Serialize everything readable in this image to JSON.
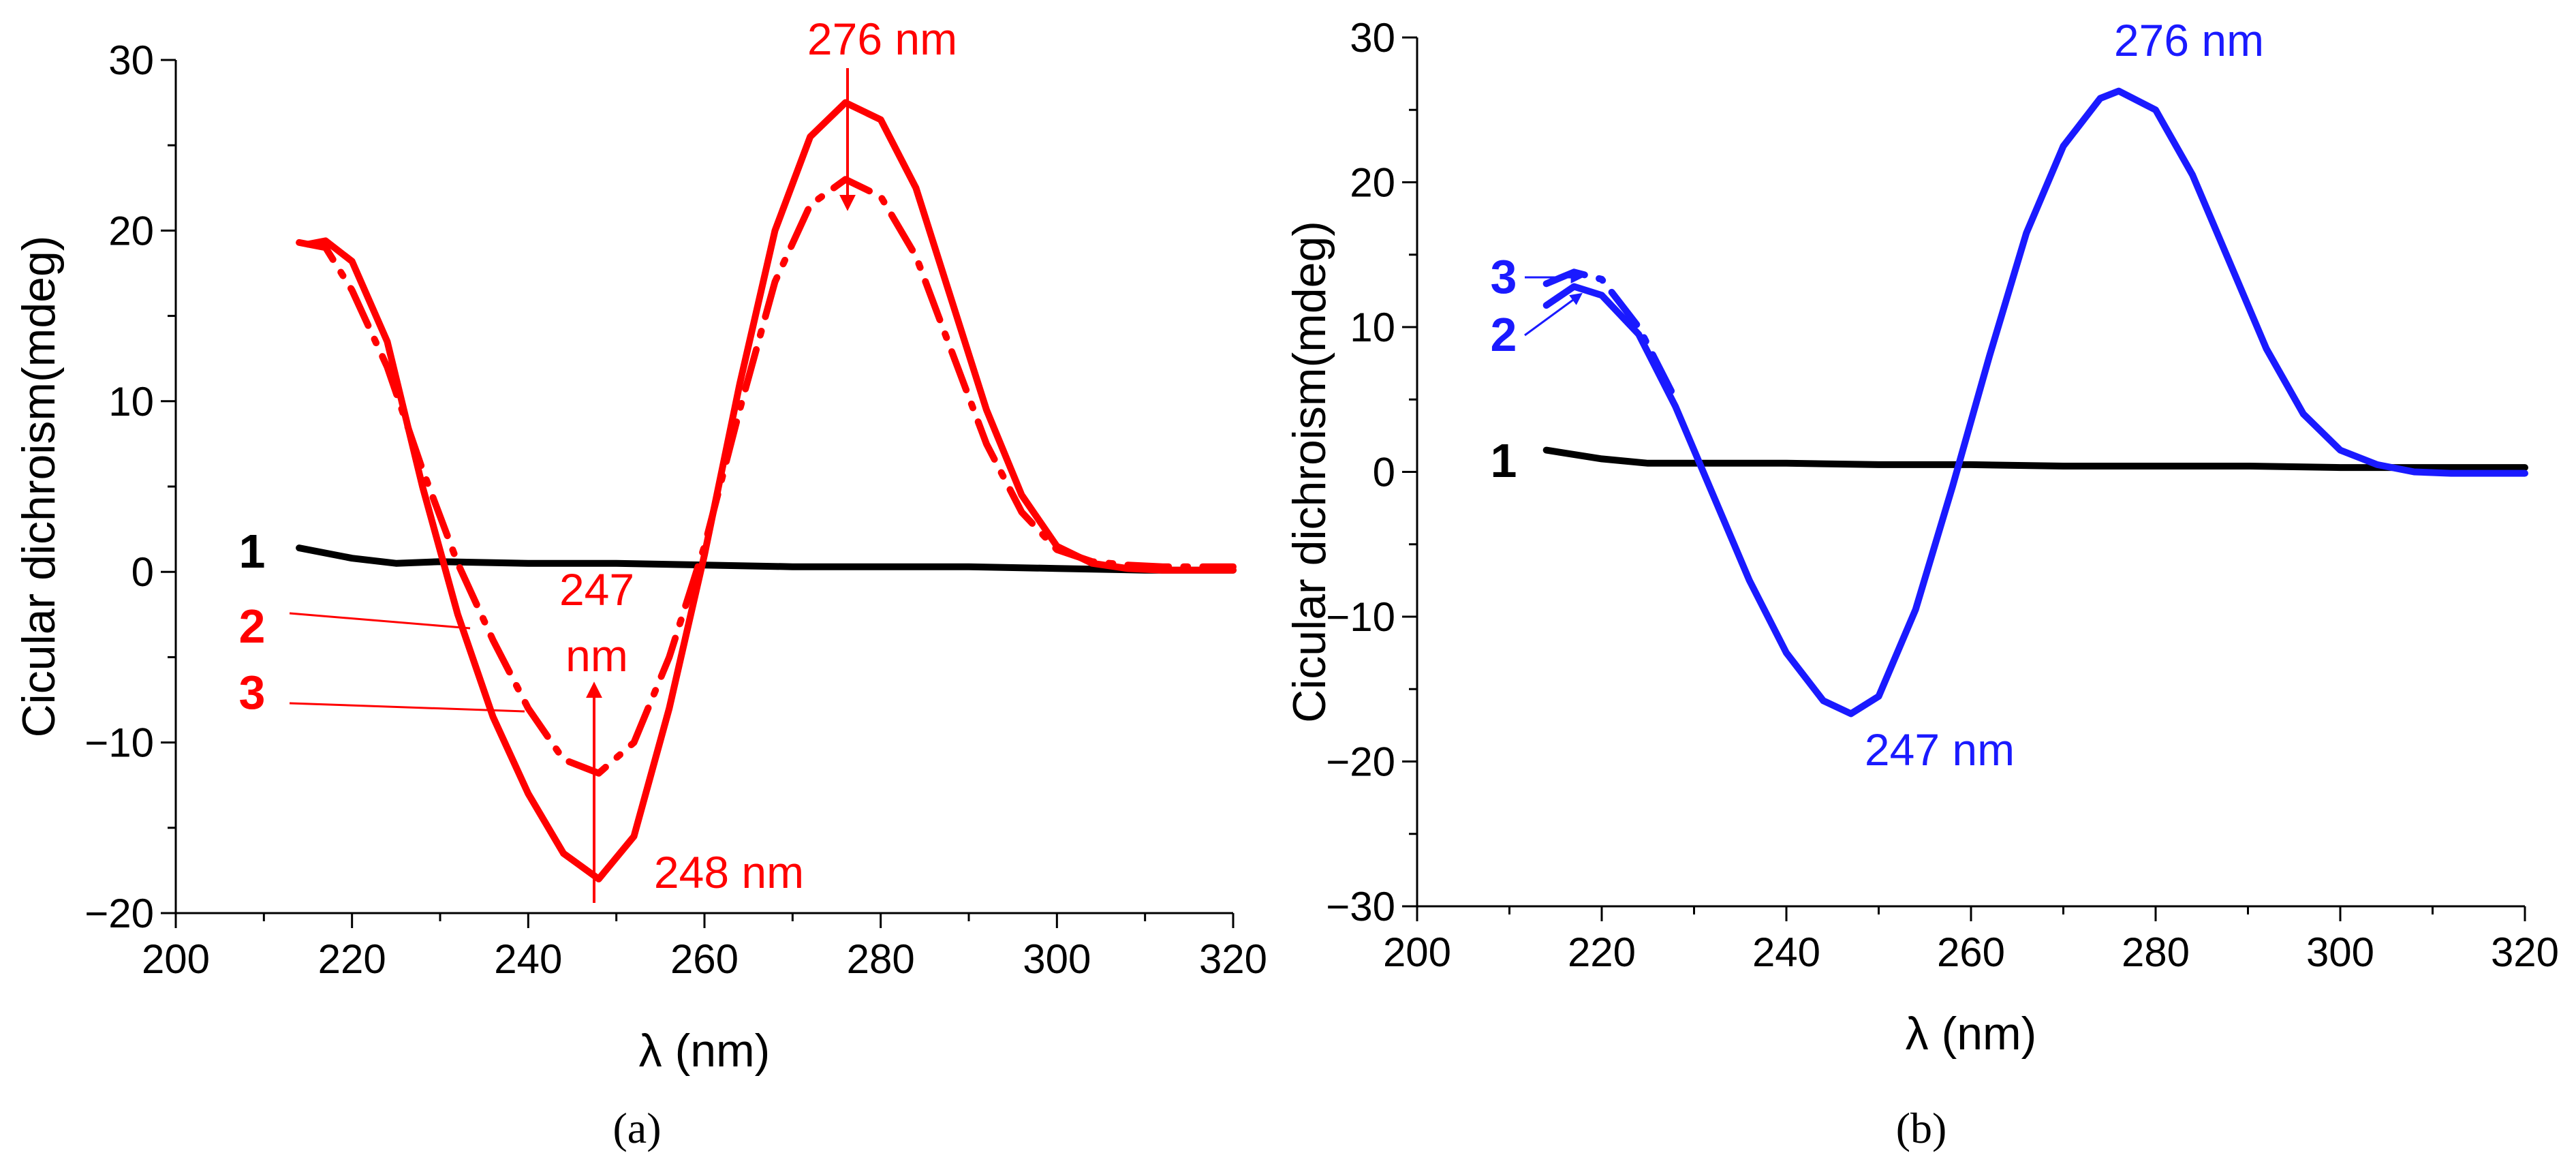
{
  "colors": {
    "axis": "#000000",
    "curve1": "#000000",
    "red": "#ff0000",
    "blue": "#1a1aff"
  },
  "chart_data": [
    {
      "type": "line",
      "panel_label": "(a)",
      "xlabel": "λ (nm)",
      "ylabel": "Cicular dichroism(mdeg)",
      "xlim": [
        200,
        320
      ],
      "ylim": [
        -20,
        30
      ],
      "x_ticks": [
        "200",
        "220",
        "240",
        "260",
        "280",
        "300",
        "320"
      ],
      "y_ticks": [
        "−20",
        "−10",
        "0",
        "10",
        "20",
        "30"
      ],
      "grid": false,
      "series": [
        {
          "name": "1",
          "style": "solid",
          "color": "#000000",
          "x": [
            214,
            220,
            225,
            230,
            240,
            250,
            260,
            270,
            280,
            290,
            300,
            310,
            320
          ],
          "y": [
            1.4,
            0.8,
            0.5,
            0.6,
            0.5,
            0.5,
            0.4,
            0.3,
            0.3,
            0.3,
            0.2,
            0.1,
            0.1
          ]
        },
        {
          "name": "2",
          "style": "solid",
          "color": "#ff0000",
          "x": [
            215,
            217,
            220,
            224,
            228,
            232,
            236,
            240,
            244,
            248,
            252,
            256,
            260,
            264,
            268,
            272,
            276,
            280,
            284,
            288,
            292,
            296,
            300,
            304,
            308,
            312,
            316,
            320
          ],
          "y": [
            19.2,
            19.4,
            18.2,
            13.5,
            5.0,
            -2.5,
            -8.5,
            -13.0,
            -16.5,
            -18.0,
            -15.5,
            -8.0,
            1.0,
            11.0,
            20.0,
            25.5,
            27.5,
            26.5,
            22.5,
            16.0,
            9.5,
            4.5,
            1.5,
            0.5,
            0.2,
            0.1,
            0.1,
            0.1
          ]
        },
        {
          "name": "3",
          "style": "dash-dot",
          "color": "#ff0000",
          "x": [
            214,
            217,
            220,
            224,
            228,
            232,
            236,
            240,
            244,
            248,
            252,
            256,
            260,
            264,
            268,
            272,
            276,
            280,
            284,
            288,
            292,
            296,
            300,
            304,
            308,
            312,
            316,
            320
          ],
          "y": [
            19.3,
            19.0,
            16.5,
            12.0,
            6.0,
            0.5,
            -4.0,
            -8.0,
            -11.0,
            -11.8,
            -10.0,
            -5.0,
            1.5,
            9.5,
            17.0,
            21.5,
            23.0,
            22.0,
            18.5,
            13.0,
            7.5,
            3.5,
            1.3,
            0.6,
            0.4,
            0.3,
            0.3,
            0.3
          ]
        }
      ],
      "curve_labels": [
        "1",
        "2",
        "3"
      ],
      "annotations": [
        "276 nm",
        "247",
        "nm",
        "248 nm"
      ]
    },
    {
      "type": "line",
      "panel_label": "(b)",
      "xlabel": "λ (nm)",
      "ylabel": "Cicular dichroism(mdeg)",
      "xlim": [
        200,
        320
      ],
      "ylim": [
        -30,
        30
      ],
      "x_ticks": [
        "200",
        "220",
        "240",
        "260",
        "280",
        "300",
        "320"
      ],
      "y_ticks": [
        "−30",
        "−20",
        "−10",
        "0",
        "10",
        "20",
        "30"
      ],
      "grid": false,
      "series": [
        {
          "name": "1",
          "style": "solid",
          "color": "#000000",
          "x": [
            214,
            220,
            225,
            230,
            240,
            250,
            260,
            270,
            280,
            290,
            300,
            310,
            320
          ],
          "y": [
            1.5,
            0.9,
            0.6,
            0.6,
            0.6,
            0.5,
            0.5,
            0.4,
            0.4,
            0.4,
            0.3,
            0.3,
            0.3
          ]
        },
        {
          "name": "2",
          "style": "solid",
          "color": "#1a1aff",
          "x": [
            214,
            217,
            220,
            224,
            228,
            232,
            236,
            240,
            244,
            247,
            250,
            254,
            258,
            262,
            266,
            270,
            274,
            276,
            280,
            284,
            288,
            292,
            296,
            300,
            304,
            308,
            312,
            316,
            320
          ],
          "y": [
            11.5,
            12.8,
            12.2,
            9.5,
            4.5,
            -1.5,
            -7.5,
            -12.5,
            -15.8,
            -16.7,
            -15.5,
            -9.5,
            -1.0,
            8.0,
            16.5,
            22.5,
            25.8,
            26.3,
            25.0,
            20.5,
            14.5,
            8.5,
            4.0,
            1.5,
            0.5,
            0.0,
            -0.1,
            -0.1,
            -0.1
          ]
        },
        {
          "name": "3",
          "style": "dash-dot",
          "color": "#1a1aff",
          "x": [
            214,
            217,
            220,
            224,
            228
          ],
          "y": [
            13.0,
            13.8,
            13.3,
            10.0,
            5.0
          ]
        }
      ],
      "curve_labels": [
        "1",
        "2",
        "3"
      ],
      "annotations": [
        "276 nm",
        "247 nm"
      ]
    }
  ]
}
